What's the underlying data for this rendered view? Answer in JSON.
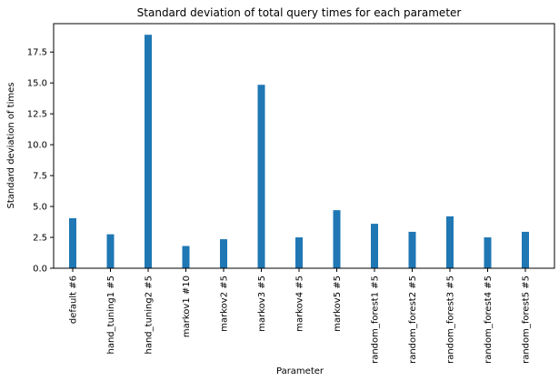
{
  "chart_data": {
    "type": "bar",
    "title": "Standard deviation of total query times for each parameter",
    "xlabel": "Parameter",
    "ylabel": "Standard deviation of times",
    "categories": [
      "default #6",
      "hand_tuning1 #5",
      "hand_tuning2 #5",
      "markov1 #10",
      "markov2 #5",
      "markov3 #5",
      "markov4 #5",
      "markov5 #5",
      "random_forest1 #5",
      "random_forest2 #5",
      "random_forest3 #5",
      "random_forest4 #5",
      "random_forest5 #5"
    ],
    "values": [
      4.05,
      2.75,
      18.9,
      1.8,
      2.35,
      14.85,
      2.5,
      4.7,
      3.6,
      2.95,
      4.2,
      2.5,
      2.95
    ],
    "ylim": [
      0,
      19.8
    ],
    "yticks": [
      "0.0",
      "2.5",
      "5.0",
      "7.5",
      "10.0",
      "12.5",
      "15.0",
      "17.5"
    ],
    "bar_color": "#1f77b4",
    "grid": false,
    "legend": "none"
  }
}
